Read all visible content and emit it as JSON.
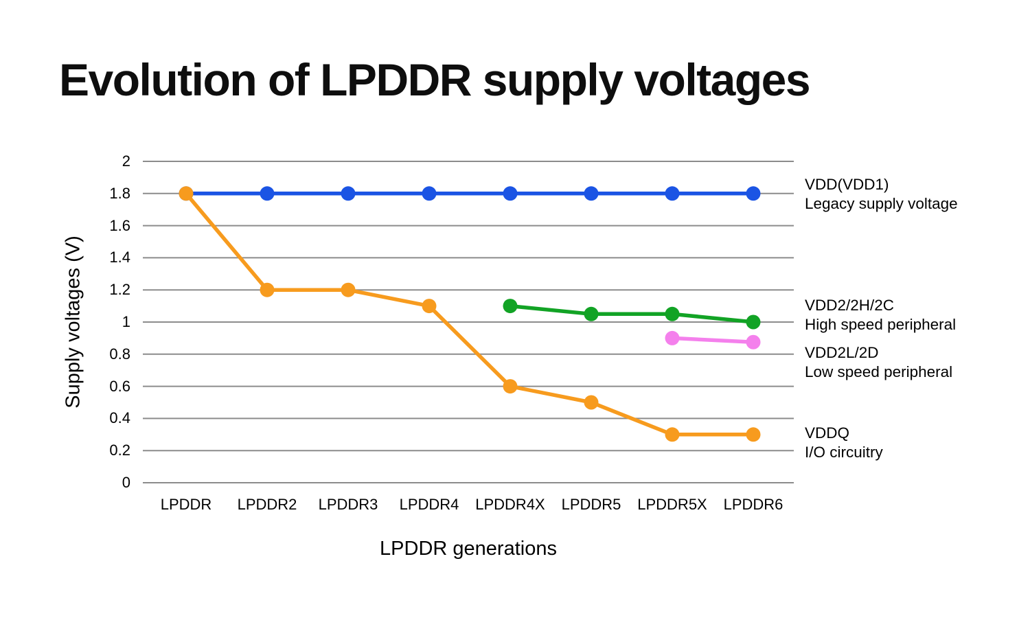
{
  "title": "Evolution of LPDDR supply voltages",
  "chart_data": {
    "type": "line",
    "title": "Evolution of LPDDR supply voltages",
    "xlabel": "LPDDR generations",
    "ylabel": "Supply voltages (V)",
    "categories": [
      "LPDDR",
      "LPDDR2",
      "LPDDR3",
      "LPDDR4",
      "LPDDR4X",
      "LPDDR5",
      "LPDDR5X",
      "LPDDR6"
    ],
    "ylim": [
      0,
      2
    ],
    "ytick_step": 0.2,
    "grid": "horizontal",
    "gridline_color": "#8c8c8c",
    "legend_position": "right-of-plot",
    "series": [
      {
        "name": "VDD(VDD1)",
        "description": "Legacy supply voltage",
        "color": "#1b54e4",
        "values": [
          1.8,
          1.8,
          1.8,
          1.8,
          1.8,
          1.8,
          1.8,
          1.8
        ]
      },
      {
        "name": "VDDQ",
        "description": "I/O circuitry",
        "color": "#f79b1e",
        "values": [
          1.8,
          1.2,
          1.2,
          1.1,
          0.6,
          0.5,
          0.3,
          0.3
        ]
      },
      {
        "name": "VDD2/2H/2C",
        "description": "High speed peripheral",
        "color": "#12a325",
        "values": [
          null,
          null,
          null,
          null,
          1.1,
          1.05,
          1.05,
          1.0
        ]
      },
      {
        "name": "VDD2L/2D",
        "description": "Low speed peripheral",
        "color": "#f480ec",
        "values": [
          null,
          null,
          null,
          null,
          null,
          null,
          0.9,
          0.875
        ]
      }
    ]
  }
}
